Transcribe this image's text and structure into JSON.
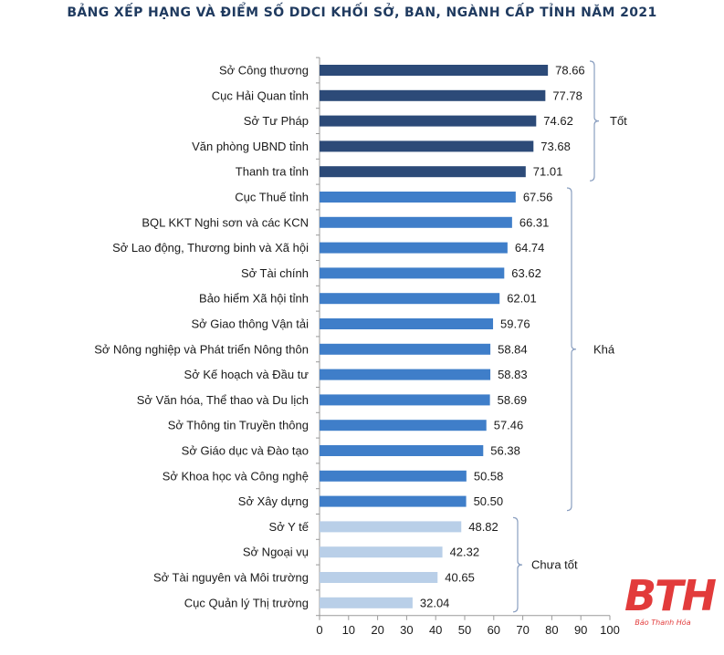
{
  "chart_data": {
    "type": "bar",
    "orientation": "horizontal",
    "title": "BẢNG XẾP HẠNG VÀ ĐIỂM SỐ DDCI KHỐI SỞ, BAN, NGÀNH CẤP TỈNH NĂM 2021",
    "categories": [
      "Sở Công thương",
      "Cục Hải Quan tỉnh",
      "Sở Tư Pháp",
      "Văn phòng UBND tỉnh",
      "Thanh tra tỉnh",
      "Cục Thuế tỉnh",
      "BQL KKT Nghi sơn và các KCN",
      "Sở Lao động, Thương binh và Xã hội",
      "Sở Tài chính",
      "Bảo hiểm Xã hội tỉnh",
      "Sở Giao thông Vận tải",
      "Sở Nông nghiệp và Phát triển Nông thôn",
      "Sở Kế hoạch và Đầu tư",
      "Sở Văn hóa, Thể thao và Du lịch",
      "Sở Thông tin Truyền thông",
      "Sở Giáo dục và Đào tạo",
      "Sở Khoa học và Công nghệ",
      "Sở Xây dựng",
      "Sở Y tế",
      "Sở Ngoại vụ",
      "Sở Tài nguyên và Môi trường",
      "Cục Quản lý Thị trường"
    ],
    "values": [
      78.66,
      77.78,
      74.62,
      73.68,
      71.01,
      67.56,
      66.31,
      64.74,
      63.62,
      62.01,
      59.76,
      58.84,
      58.83,
      58.69,
      57.46,
      56.38,
      50.58,
      50.5,
      48.82,
      42.32,
      40.65,
      32.04
    ],
    "value_labels": [
      "78.66",
      "77.78",
      "74.62",
      "73.68",
      "71.01",
      "67.56",
      "66.31",
      "64.74",
      "63.62",
      "62.01",
      "59.76",
      "58.84",
      "58.83",
      "58.69",
      "57.46",
      "56.38",
      "50.58",
      "50.50",
      "48.82",
      "42.32",
      "40.65",
      "32.04"
    ],
    "groups": [
      {
        "label": "Tốt",
        "start": 0,
        "end": 4,
        "color": "#2c4a78"
      },
      {
        "label": "Khá",
        "start": 5,
        "end": 17,
        "color": "#3f7ec9"
      },
      {
        "label": "Chưa tốt",
        "start": 18,
        "end": 21,
        "color": "#b9cfe8"
      }
    ],
    "xlim": [
      0,
      100
    ],
    "xticks": [
      0,
      10,
      20,
      30,
      40,
      50,
      60,
      70,
      80,
      90,
      100
    ],
    "xlabel": "",
    "ylabel": "",
    "grid": false,
    "legend": "none"
  },
  "watermark": {
    "text": "BTH",
    "subtext": "Báo Thanh Hóa"
  }
}
